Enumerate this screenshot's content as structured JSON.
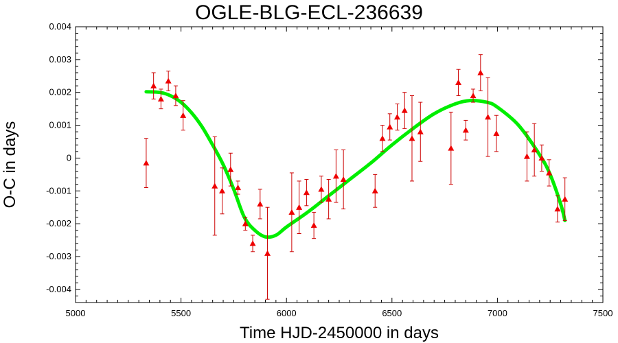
{
  "chart_data": {
    "type": "scatter",
    "title": "OGLE-BLG-ECL-236639",
    "xlabel": "Time HJD-2450000 in days",
    "ylabel": "O-C in days",
    "xlim": [
      5000,
      7500
    ],
    "ylim": [
      -0.0044,
      0.004
    ],
    "xticks": [
      5000,
      5500,
      6000,
      6500,
      7000,
      7500
    ],
    "xtick_labels": [
      "5000",
      "5500",
      "6000",
      "6500",
      "7000",
      "7500"
    ],
    "yticks": [
      0.004,
      0.003,
      0.002,
      0.001,
      0,
      -0.001,
      -0.002,
      -0.003,
      -0.004
    ],
    "ytick_labels": [
      "0.004",
      "0.003",
      "0.002",
      "0.001",
      "0",
      "-0.001",
      "-0.002",
      "-0.003",
      "-0.004"
    ],
    "grid": false,
    "colors": {
      "points": "#ee0000",
      "errorbars": "#cc0000",
      "fit": "#00ee00",
      "axes": "#000000"
    },
    "series": [
      {
        "kind": "points_with_errorbars",
        "marker": "triangle",
        "points": [
          {
            "x": 5335,
            "y": -0.00015,
            "err": 0.00075
          },
          {
            "x": 5370,
            "y": 0.0022,
            "err": 0.0004
          },
          {
            "x": 5405,
            "y": 0.0018,
            "err": 0.0003
          },
          {
            "x": 5440,
            "y": 0.00235,
            "err": 0.0003
          },
          {
            "x": 5475,
            "y": 0.0019,
            "err": 0.0003
          },
          {
            "x": 5510,
            "y": 0.0013,
            "err": 0.00045
          },
          {
            "x": 5660,
            "y": -0.00085,
            "err": 0.0015
          },
          {
            "x": 5695,
            "y": -0.001,
            "err": 0.0007
          },
          {
            "x": 5735,
            "y": -0.00035,
            "err": 0.0005
          },
          {
            "x": 5770,
            "y": -0.0009,
            "err": 0.0002
          },
          {
            "x": 5805,
            "y": -0.002,
            "err": 0.0002
          },
          {
            "x": 5840,
            "y": -0.0026,
            "err": 0.00025
          },
          {
            "x": 5875,
            "y": -0.0014,
            "err": 0.00045
          },
          {
            "x": 5910,
            "y": -0.0029,
            "err": 0.0014
          },
          {
            "x": 6025,
            "y": -0.00165,
            "err": 0.0012
          },
          {
            "x": 6060,
            "y": -0.0015,
            "err": 0.0008
          },
          {
            "x": 6095,
            "y": -0.00105,
            "err": 0.0004
          },
          {
            "x": 6130,
            "y": -0.00205,
            "err": 0.0004
          },
          {
            "x": 6165,
            "y": -0.00095,
            "err": 0.0004
          },
          {
            "x": 6200,
            "y": -0.00125,
            "err": 0.0006
          },
          {
            "x": 6235,
            "y": -0.00055,
            "err": 0.0008
          },
          {
            "x": 6270,
            "y": -0.00065,
            "err": 0.0009
          },
          {
            "x": 6420,
            "y": -0.001,
            "err": 0.0005
          },
          {
            "x": 6455,
            "y": 0.0006,
            "err": 0.0004
          },
          {
            "x": 6490,
            "y": 0.00095,
            "err": 0.0004
          },
          {
            "x": 6525,
            "y": 0.00125,
            "err": 0.0004
          },
          {
            "x": 6560,
            "y": 0.00145,
            "err": 0.00055
          },
          {
            "x": 6595,
            "y": 0.0006,
            "err": 0.0013
          },
          {
            "x": 6635,
            "y": 0.0008,
            "err": 0.0009
          },
          {
            "x": 6780,
            "y": 0.0003,
            "err": 0.0011
          },
          {
            "x": 6815,
            "y": 0.0023,
            "err": 0.0004
          },
          {
            "x": 6850,
            "y": 0.00085,
            "err": 0.0003
          },
          {
            "x": 6885,
            "y": 0.0019,
            "err": 0.0002
          },
          {
            "x": 6920,
            "y": 0.0026,
            "err": 0.00055
          },
          {
            "x": 6955,
            "y": 0.00125,
            "err": 0.0012
          },
          {
            "x": 6995,
            "y": 0.00075,
            "err": 0.00055
          },
          {
            "x": 7140,
            "y": 5e-05,
            "err": 0.00075
          },
          {
            "x": 7175,
            "y": 0.00025,
            "err": 0.0008
          },
          {
            "x": 7210,
            "y": 0.0,
            "err": 0.0004
          },
          {
            "x": 7245,
            "y": -0.00045,
            "err": 0.0004
          },
          {
            "x": 7285,
            "y": -0.00155,
            "err": 0.0004
          },
          {
            "x": 7320,
            "y": -0.00125,
            "err": 0.00065
          }
        ]
      },
      {
        "kind": "fit_curve",
        "x": [
          5335,
          5400,
          5450,
          5500,
          5550,
          5600,
          5650,
          5700,
          5750,
          5800,
          5850,
          5900,
          5950,
          6000,
          6100,
          6200,
          6300,
          6400,
          6500,
          6600,
          6700,
          6800,
          6870,
          6950,
          7000,
          7100,
          7200,
          7250,
          7300,
          7320
        ],
        "y": [
          0.00202,
          0.002,
          0.0019,
          0.0017,
          0.00138,
          0.00095,
          0.0004,
          -0.0002,
          -0.00095,
          -0.0018,
          -0.0022,
          -0.0024,
          -0.00235,
          -0.0021,
          -0.00165,
          -0.00115,
          -0.00065,
          -0.00015,
          0.0004,
          0.0009,
          0.00135,
          0.00165,
          0.00175,
          0.0017,
          0.00155,
          0.001,
          0.0001,
          -0.0005,
          -0.0014,
          -0.0019
        ]
      }
    ]
  }
}
